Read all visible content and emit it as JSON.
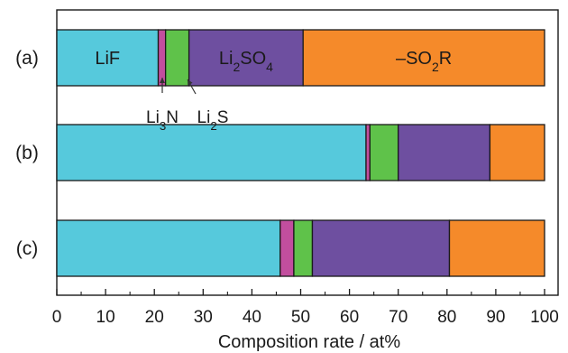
{
  "chart_data": {
    "type": "stacked-bar",
    "orientation": "horizontal",
    "xlabel": "Composition rate / at%",
    "xlim": [
      0,
      100
    ],
    "xticks": [
      0,
      10,
      20,
      30,
      40,
      50,
      60,
      70,
      80,
      90,
      100
    ],
    "categories": [
      "(a)",
      "(b)",
      "(c)"
    ],
    "series": [
      {
        "name": "LiF",
        "color": "#56c9dc",
        "values": [
          20.8,
          63.4,
          45.8
        ]
      },
      {
        "name": "Li3N",
        "color": "#c24e9e",
        "values": [
          1.5,
          0.8,
          2.8
        ]
      },
      {
        "name": "Li2S",
        "color": "#5fc24a",
        "values": [
          4.8,
          5.8,
          3.8
        ]
      },
      {
        "name": "Li2SO4",
        "color": "#6e4fa0",
        "values": [
          23.4,
          18.8,
          28.1
        ]
      },
      {
        "name": "-SO2R",
        "color": "#f58a2a",
        "values": [
          49.5,
          11.2,
          19.5
        ]
      }
    ],
    "segment_labels": {
      "LiF": {
        "base": "LiF",
        "sub": ""
      },
      "Li2SO4": {
        "base": "Li",
        "sub": "2",
        "rest": "SO",
        "sub2": "4"
      },
      "-SO2R": {
        "base": "–SO",
        "sub": "2",
        "rest": "R"
      }
    },
    "annotations": [
      {
        "target": "Li3N",
        "base": "Li",
        "sub": "3",
        "rest": "N"
      },
      {
        "target": "Li2S",
        "base": "Li",
        "sub": "2",
        "rest": "S"
      }
    ]
  }
}
